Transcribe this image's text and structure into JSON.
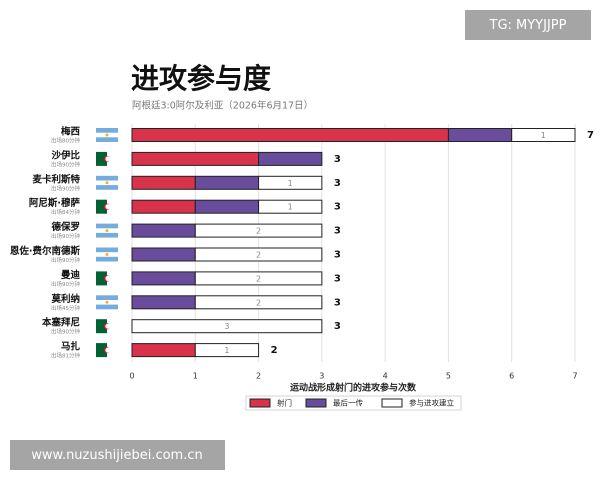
{
  "chart_data": {
    "type": "bar",
    "orientation": "horizontal",
    "stacked": true,
    "title": "进攻参与度",
    "subtitle": "阿根廷3:0阿尔及利亚（2026年6月17日）",
    "categories": [
      "梅西",
      "沙伊比",
      "麦卡利斯特",
      "阿尼斯·穆萨",
      "德保罗",
      "恩佐·费尔南德斯",
      "曼迪",
      "莫利纳",
      "本塞拜尼",
      "马扎"
    ],
    "category_notes": [
      "出场80分钟",
      "出场90分钟",
      "出场90分钟",
      "出场84分钟",
      "出场90分钟",
      "出场90分钟",
      "出场90分钟",
      "出场45分钟",
      "出场90分钟",
      "出场81分钟"
    ],
    "series": [
      {
        "name": "射门",
        "color": "#d8334a",
        "values": [
          5,
          2,
          1,
          1,
          0,
          0,
          0,
          0,
          0,
          1
        ]
      },
      {
        "name": "最后一传",
        "color": "#6a4c9c",
        "values": [
          1,
          1,
          1,
          1,
          1,
          1,
          1,
          1,
          0,
          0
        ]
      },
      {
        "name": "参与进攻建立",
        "color": "#ffffff",
        "values": [
          1,
          0,
          1,
          1,
          2,
          2,
          2,
          2,
          3,
          1
        ]
      }
    ],
    "totals": [
      7,
      3,
      3,
      3,
      3,
      3,
      3,
      3,
      3,
      2
    ],
    "xlabel": "运动战形成射门的进攻参与次数",
    "xlim": [
      0,
      7
    ],
    "xticks": [
      0,
      1,
      2,
      3,
      4,
      5,
      6,
      7
    ],
    "grid": true,
    "legend": "bottom"
  },
  "watermarks": [
    "TG: MYYJJPP",
    "www.nuzushijiebei.com.cn"
  ]
}
